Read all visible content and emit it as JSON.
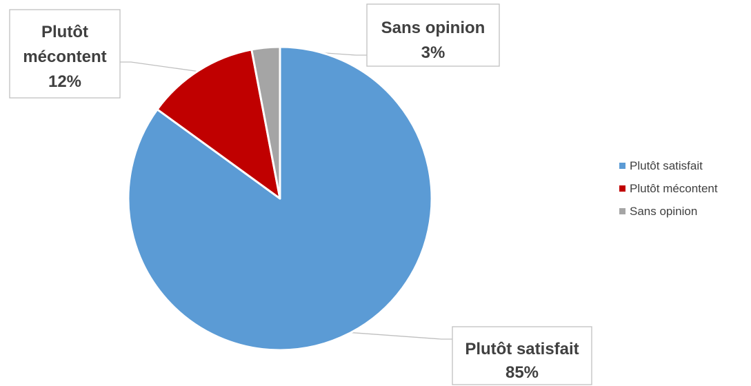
{
  "chart_data": {
    "type": "pie",
    "title": "",
    "start_angle_deg": 0,
    "direction": "clockwise",
    "slices": [
      {
        "label": "Plutôt satisfait",
        "value": 85,
        "value_label": "85%",
        "color": "#5B9BD5"
      },
      {
        "label": "Plutôt mécontent",
        "value": 12,
        "value_label": "12%",
        "color": "#C00000"
      },
      {
        "label": "Sans opinion",
        "value": 3,
        "value_label": "3%",
        "color": "#A5A5A5"
      }
    ],
    "data_labels": [
      {
        "lines": [
          "Plutôt satisfait",
          "85%"
        ]
      },
      {
        "lines": [
          "Plutôt",
          "mécontent",
          "12%"
        ]
      },
      {
        "lines": [
          "Sans opinion",
          "3%"
        ]
      }
    ],
    "legend": {
      "position": "right",
      "items": [
        "Plutôt satisfait",
        "Plutôt mécontent",
        "Sans opinion"
      ]
    }
  }
}
